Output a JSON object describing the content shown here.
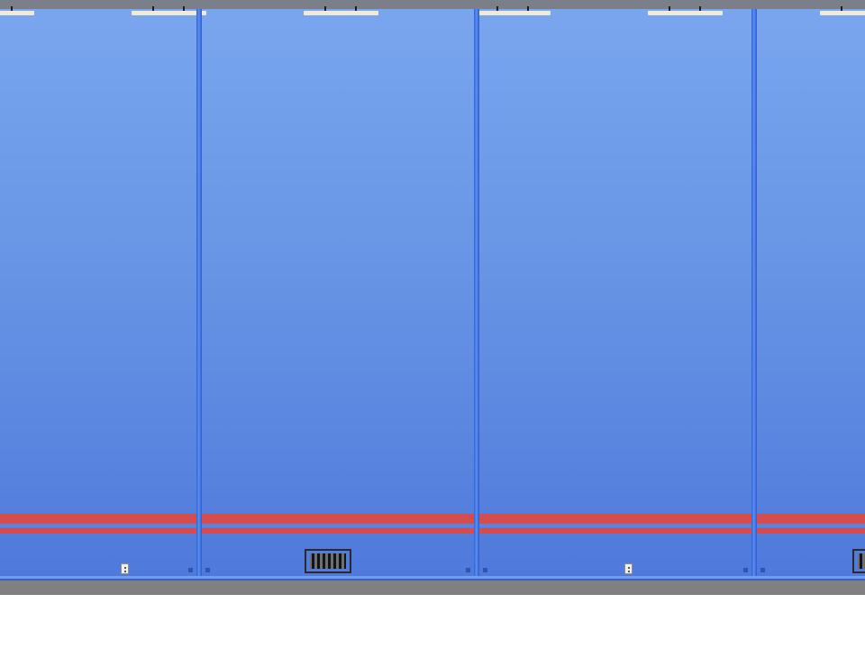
{
  "scene": {
    "name": "hallway",
    "wall_color": "#6a97e6",
    "stripe_color": "#d64b4b",
    "floor_color": "#808080",
    "ceiling_color": "#7a7f8a",
    "lamp_color": "#f3ead6",
    "pillar_color": "#3b6fe0"
  },
  "items": {
    "ceiling_lamps": 6,
    "pillars": 3,
    "wall_outlets": 2,
    "floor_vents": 2
  }
}
